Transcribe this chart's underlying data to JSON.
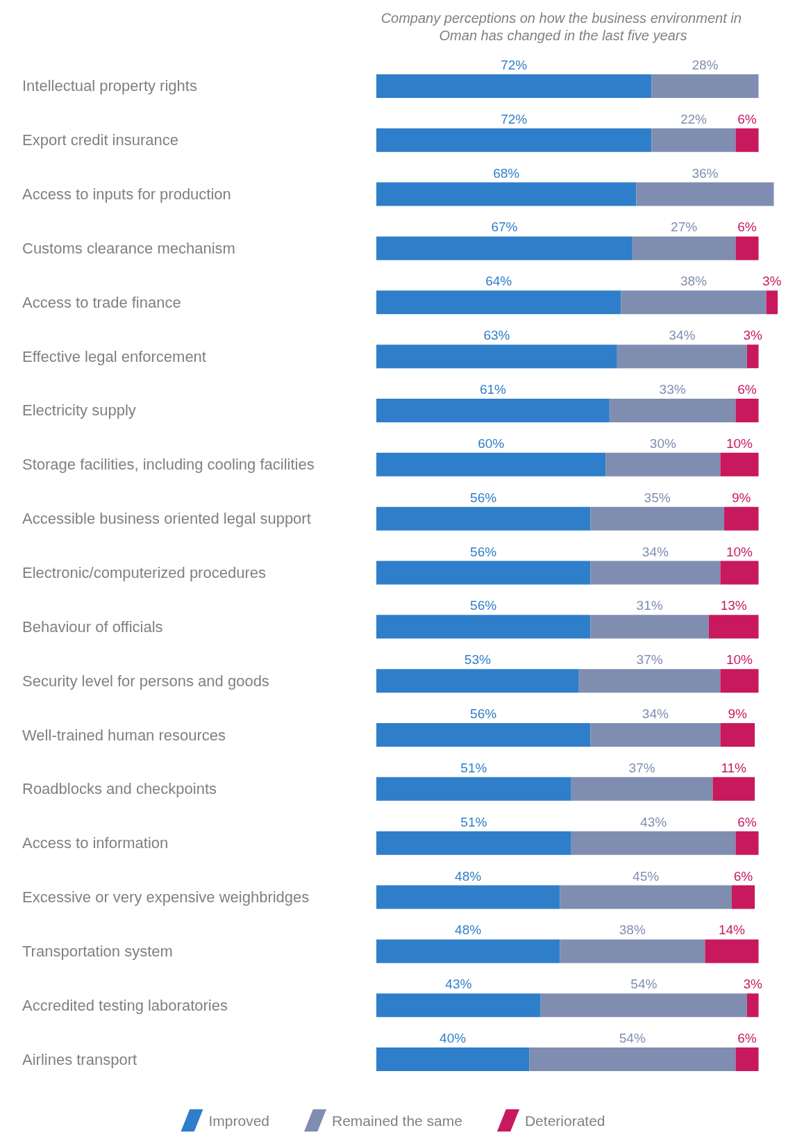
{
  "chart_data": {
    "type": "bar",
    "orientation": "horizontal",
    "stacked": true,
    "legend": "bottom",
    "title": "Company perceptions on how the business environment in Oman has changed in the last five years",
    "categories": [
      "Intellectual property rights",
      "Export credit insurance",
      "Access to inputs for production",
      "Customs clearance mechanism",
      "Access to trade finance",
      "Effective legal enforcement",
      "Electricity supply",
      "Storage facilities, including cooling facilities",
      "Accessible business oriented legal support",
      "Electronic/computerized procedures",
      "Behaviour of officials",
      "Security level for persons and goods",
      "Well-trained human resources",
      "Roadblocks and checkpoints",
      "Access to information",
      "Excessive or very expensive weighbridges",
      "Transportation system",
      "Accredited testing laboratories",
      "Airlines transport"
    ],
    "series": [
      {
        "name": "Improved",
        "color": "#2f7ec9",
        "values": [
          72,
          72,
          68,
          67,
          64,
          63,
          61,
          60,
          56,
          56,
          56,
          53,
          56,
          51,
          51,
          48,
          48,
          43,
          40
        ],
        "value_labels": [
          "72%",
          "72%",
          "68%",
          "67%",
          "64%",
          "63%",
          "61%",
          "60%",
          "56%",
          "56%",
          "56%",
          "53%",
          "56%",
          "51%",
          "51%",
          "48%",
          "48%",
          "43%",
          "40%"
        ]
      },
      {
        "name": "Remained the same",
        "color": "#7f8db0",
        "values": [
          28,
          22,
          36,
          27,
          38,
          34,
          33,
          30,
          35,
          34,
          31,
          37,
          34,
          37,
          43,
          45,
          38,
          54,
          54
        ],
        "value_labels": [
          "28%",
          "22%",
          "36%",
          "27%",
          "38%",
          "34%",
          "33%",
          "30%",
          "35%",
          "34%",
          "31%",
          "37%",
          "34%",
          "37%",
          "43%",
          "45%",
          "38%",
          "54%",
          "54%"
        ]
      },
      {
        "name": "Deteriorated",
        "color": "#c8185e",
        "values": [
          null,
          6,
          null,
          6,
          3,
          3,
          6,
          10,
          9,
          10,
          13,
          10,
          9,
          11,
          6,
          6,
          14,
          3,
          6
        ],
        "value_labels": [
          null,
          "6%",
          null,
          "6%",
          "3%",
          "3%",
          "6%",
          "10%",
          "9%",
          "10%",
          "13%",
          "10%",
          "9%",
          "11%",
          "6%",
          "6%",
          "14%",
          "3%",
          "6%"
        ]
      }
    ]
  }
}
